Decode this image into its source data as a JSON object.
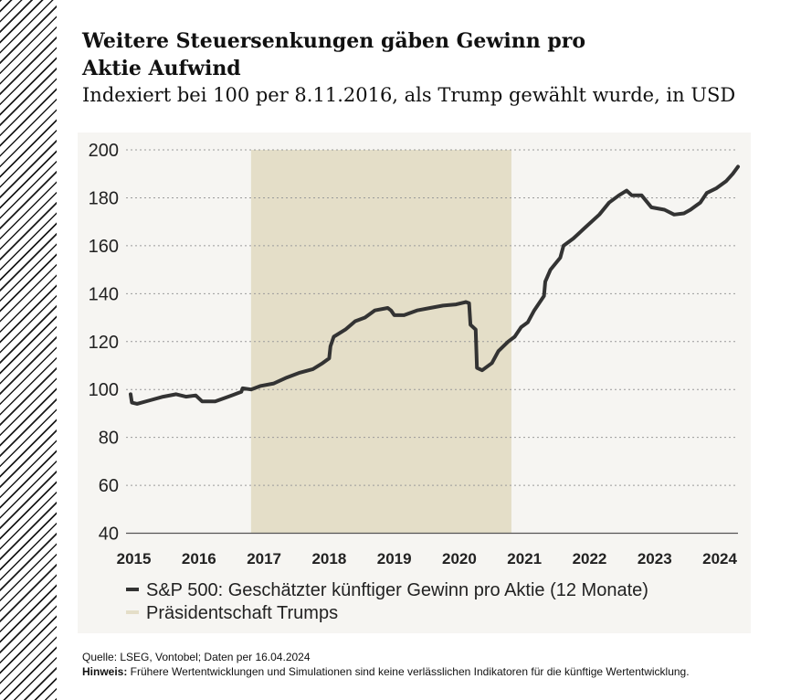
{
  "title": "Weitere Steuersenkungen gäben Gewinn pro Aktie Aufwind",
  "title_lines": [
    "Weitere Steuersenkungen gäben Gewinn pro",
    "Aktie Aufwind"
  ],
  "subtitle": "Indexiert bei 100 per 8.11.2016, als Trump gewählt wurde, in USD",
  "chart_data": {
    "type": "line",
    "x_ticks": [
      "2015",
      "2016",
      "2017",
      "2018",
      "2019",
      "2020",
      "2021",
      "2022",
      "2023",
      "2024"
    ],
    "y_ticks": [
      40,
      60,
      80,
      100,
      120,
      140,
      160,
      180,
      200
    ],
    "ylim": [
      40,
      200
    ],
    "xlim": [
      2014.93,
      2024.33
    ],
    "grid": "horizontal dotted",
    "legend_position": "bottom",
    "shaded_region": {
      "x0": 2016.85,
      "x1": 2020.85,
      "label": "Präsidentschaft Trumps",
      "color": "#e4dec8"
    },
    "series": [
      {
        "name": "S&P 500: Geschätzter künftiger Gewinn pro Aktie (12 Monate)",
        "color": "#333333",
        "points": [
          [
            2015.0,
            98
          ],
          [
            2015.02,
            94.5
          ],
          [
            2015.1,
            94
          ],
          [
            2015.3,
            95.5
          ],
          [
            2015.5,
            97
          ],
          [
            2015.7,
            98
          ],
          [
            2015.85,
            97
          ],
          [
            2016.0,
            97.5
          ],
          [
            2016.1,
            95
          ],
          [
            2016.3,
            95
          ],
          [
            2016.5,
            97
          ],
          [
            2016.7,
            99
          ],
          [
            2016.72,
            100.5
          ],
          [
            2016.85,
            100
          ],
          [
            2017.0,
            101.5
          ],
          [
            2017.2,
            102.5
          ],
          [
            2017.4,
            105
          ],
          [
            2017.6,
            107
          ],
          [
            2017.8,
            108.5
          ],
          [
            2017.95,
            111
          ],
          [
            2018.05,
            113
          ],
          [
            2018.07,
            118
          ],
          [
            2018.12,
            122
          ],
          [
            2018.3,
            125
          ],
          [
            2018.45,
            128.5
          ],
          [
            2018.6,
            130
          ],
          [
            2018.75,
            133
          ],
          [
            2018.95,
            134
          ],
          [
            2019.0,
            133
          ],
          [
            2019.05,
            131
          ],
          [
            2019.2,
            131
          ],
          [
            2019.4,
            133
          ],
          [
            2019.6,
            134
          ],
          [
            2019.8,
            135
          ],
          [
            2020.0,
            135.5
          ],
          [
            2020.15,
            136.5
          ],
          [
            2020.2,
            136
          ],
          [
            2020.22,
            127
          ],
          [
            2020.3,
            125
          ],
          [
            2020.32,
            109
          ],
          [
            2020.4,
            108
          ],
          [
            2020.55,
            111
          ],
          [
            2020.65,
            116
          ],
          [
            2020.8,
            120
          ],
          [
            2020.9,
            122
          ],
          [
            2021.0,
            126
          ],
          [
            2021.1,
            128
          ],
          [
            2021.2,
            133
          ],
          [
            2021.35,
            139
          ],
          [
            2021.37,
            145
          ],
          [
            2021.45,
            150
          ],
          [
            2021.6,
            155
          ],
          [
            2021.65,
            160
          ],
          [
            2021.8,
            163
          ],
          [
            2022.0,
            168
          ],
          [
            2022.2,
            173
          ],
          [
            2022.35,
            178
          ],
          [
            2022.5,
            181
          ],
          [
            2022.62,
            183
          ],
          [
            2022.7,
            181
          ],
          [
            2022.85,
            181
          ],
          [
            2023.0,
            176
          ],
          [
            2023.2,
            175
          ],
          [
            2023.35,
            173
          ],
          [
            2023.5,
            173.5
          ],
          [
            2023.6,
            175
          ],
          [
            2023.75,
            178
          ],
          [
            2023.85,
            182
          ],
          [
            2024.0,
            184
          ],
          [
            2024.15,
            187
          ],
          [
            2024.25,
            190
          ],
          [
            2024.33,
            193
          ]
        ]
      }
    ]
  },
  "legend": {
    "series_label": "S&P 500: Geschätzter künftiger Gewinn pro Aktie (12 Monate)",
    "shade_label": "Präsidentschaft Trumps"
  },
  "footer": {
    "source": "Quelle: LSEG, Vontobel; Daten per 16.04.2024",
    "note_label": "Hinweis:",
    "note_text": " Frühere Wertentwicklungen und Simulationen sind keine verlässlichen Indikatoren für die künftige Wertentwicklung."
  }
}
